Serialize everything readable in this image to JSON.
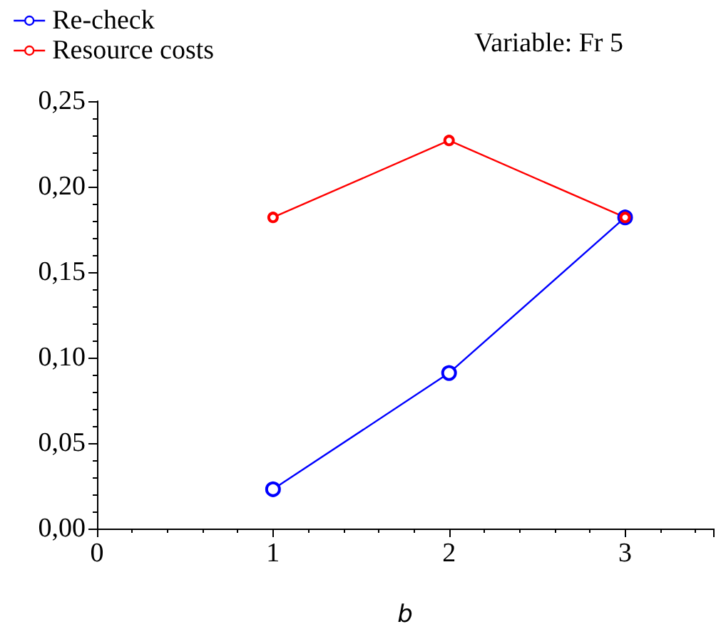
{
  "chart_data": {
    "type": "line",
    "xlabel": "b",
    "annotations": [
      "Variable: Fr 5"
    ],
    "x": [
      1,
      2,
      3
    ],
    "series": [
      {
        "name": "Re-check",
        "color": "#0000ff",
        "values": [
          0.023,
          0.091,
          0.182
        ]
      },
      {
        "name": "Resource costs",
        "color": "#ff0000",
        "values": [
          0.182,
          0.227,
          0.182
        ]
      }
    ],
    "xlim": [
      0,
      3.5
    ],
    "xticks": [
      0,
      1,
      2,
      3
    ],
    "ylim": [
      0,
      0.25
    ],
    "yticks": [
      {
        "value": 0,
        "label": "0,00"
      },
      {
        "value": 0.05,
        "label": "0,05"
      },
      {
        "value": 0.1,
        "label": "0,10"
      },
      {
        "value": 0.15,
        "label": "0,15"
      },
      {
        "value": 0.2,
        "label": "0,20"
      },
      {
        "value": 0.25,
        "label": "0,25"
      }
    ],
    "grid": false,
    "legend": "top left",
    "marker": "circle",
    "line_style": "solid"
  }
}
